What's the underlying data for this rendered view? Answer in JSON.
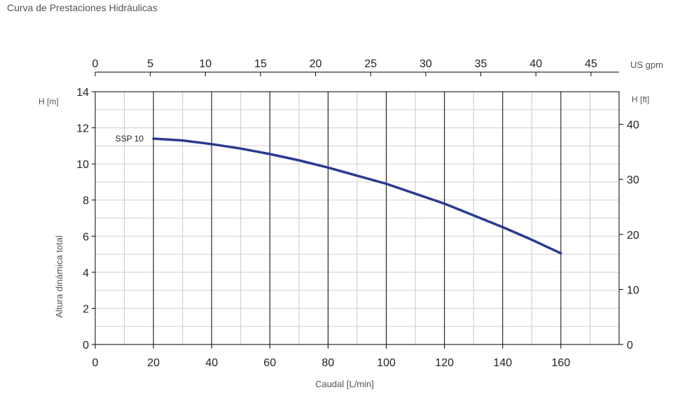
{
  "page": {
    "title": "Curva de Prestaciones Hidráulicas"
  },
  "chart_data": {
    "type": "line",
    "title": "Curva de Prestaciones Hidráulicas",
    "xlabel": "Caudal [L/min]",
    "ylabel": "Altura dinámica total",
    "x_unit_label": "Caudal [L/min]",
    "y_left_unit": "H [m]",
    "y_right_unit": "H [ft]",
    "x_top_unit": "US gpm",
    "xlim": [
      0,
      180
    ],
    "ylim": [
      0,
      14
    ],
    "x_ticks": [
      0,
      20,
      40,
      60,
      80,
      100,
      120,
      140,
      160
    ],
    "y_ticks": [
      0,
      2,
      4,
      6,
      8,
      10,
      12,
      14
    ],
    "x_top_ticks": [
      0,
      5,
      10,
      15,
      20,
      25,
      30,
      35,
      40,
      45
    ],
    "y_right_ticks": [
      0,
      10,
      20,
      30,
      40
    ],
    "grid": true,
    "series": [
      {
        "name": "SSP 10",
        "color": "#2b3a8f",
        "x": [
          20,
          30,
          40,
          50,
          60,
          70,
          80,
          90,
          100,
          110,
          120,
          130,
          140,
          150,
          160
        ],
        "y": [
          11.4,
          11.3,
          11.1,
          10.85,
          10.55,
          10.2,
          9.8,
          9.35,
          8.9,
          8.35,
          7.8,
          7.15,
          6.5,
          5.8,
          5.05
        ]
      }
    ]
  }
}
